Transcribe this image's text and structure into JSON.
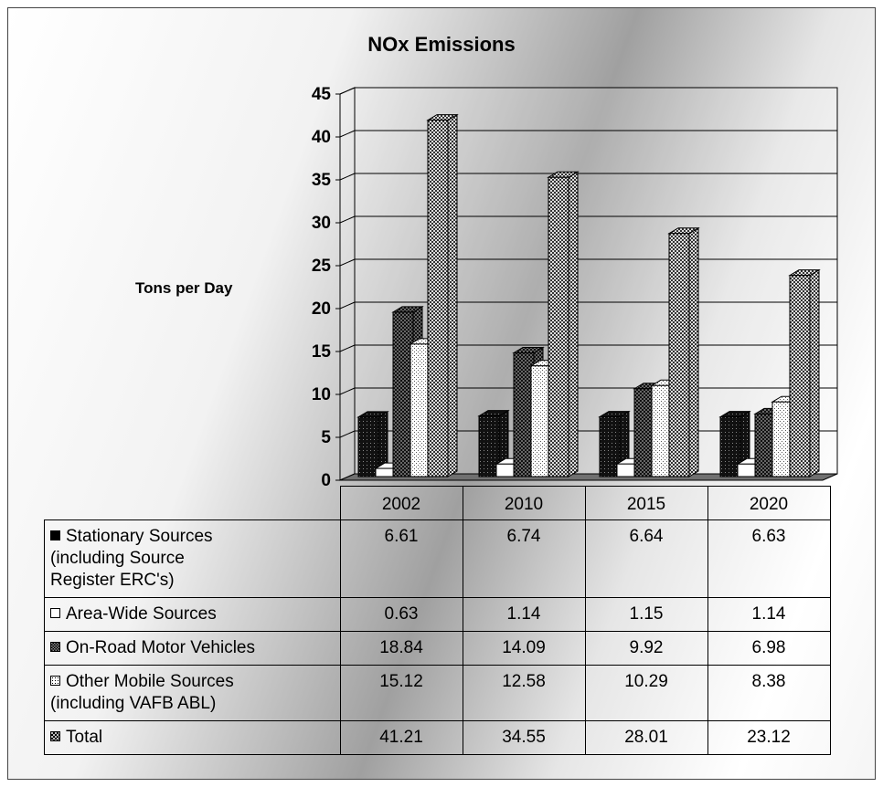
{
  "chart_data": {
    "type": "bar",
    "title": "NOx Emissions",
    "ylabel": "Tons per Day",
    "xlabel": "",
    "ylim": [
      0,
      45
    ],
    "yticks": [
      0,
      5,
      10,
      15,
      20,
      25,
      30,
      35,
      40,
      45
    ],
    "grid": true,
    "legend": "data-table",
    "categories": [
      "2002",
      "2010",
      "2015",
      "2020"
    ],
    "series": [
      {
        "name": "Stationary Sources (including Source Register ERC's)",
        "values": [
          6.61,
          6.74,
          6.64,
          6.63
        ],
        "display": [
          "6.61",
          "6.74",
          "6.64",
          "6.63"
        ],
        "fill": "#111111",
        "pattern": "dark-dots",
        "key": "solid"
      },
      {
        "name": "Area-Wide Sources",
        "values": [
          0.63,
          1.14,
          1.15,
          1.14
        ],
        "display": [
          "0.63",
          "1.14",
          "1.15",
          "1.14"
        ],
        "fill": "#ffffff",
        "pattern": "none",
        "key": "white"
      },
      {
        "name": "On-Road Motor Vehicles",
        "values": [
          18.84,
          14.09,
          9.92,
          6.98
        ],
        "display": [
          "18.84",
          "14.09",
          "9.92",
          "6.98"
        ],
        "fill": "#222222",
        "pattern": "dark-checker",
        "key": "checker"
      },
      {
        "name": "Other Mobile Sources (including VAFB ABL)",
        "values": [
          15.12,
          12.58,
          10.29,
          8.38
        ],
        "display": [
          "15.12",
          "12.58",
          "10.29",
          "8.38"
        ],
        "fill": "#ffffff",
        "pattern": "light-dots",
        "key": "dotted"
      },
      {
        "name": "Total",
        "values": [
          41.21,
          34.55,
          28.01,
          23.12
        ],
        "display": [
          "41.21",
          "34.55",
          "28.01",
          "23.12"
        ],
        "fill": "#7a7a7a",
        "pattern": "crosshatch",
        "key": "crosshatch"
      }
    ],
    "table_rows": [
      {
        "lines": [
          "Stationary Sources",
          "(including Source",
          "Register ERC's)"
        ]
      },
      {
        "lines": [
          "Area-Wide Sources"
        ]
      },
      {
        "lines": [
          "On-Road Motor Vehicles"
        ]
      },
      {
        "lines": [
          "Other Mobile Sources",
          "(including VAFB ABL)"
        ]
      },
      {
        "lines": [
          "Total"
        ]
      }
    ]
  }
}
